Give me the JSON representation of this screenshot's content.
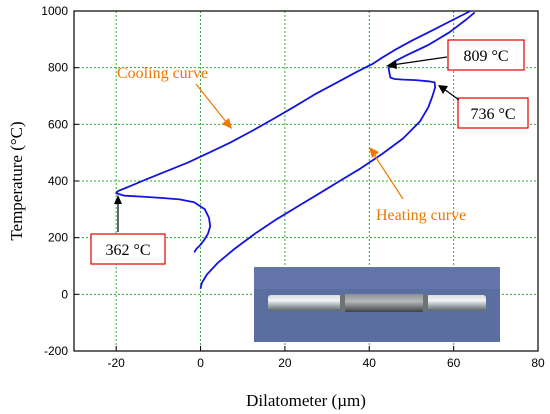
{
  "chart_data": {
    "type": "line",
    "xlabel": "Dilatometer (µm)",
    "ylabel": "Temperature (°C)",
    "xlim": [
      -30,
      80
    ],
    "ylim": [
      -200,
      1000
    ],
    "x_ticks": [
      -20,
      0,
      20,
      40,
      60,
      80
    ],
    "y_ticks": [
      -200,
      0,
      200,
      400,
      600,
      800,
      1000
    ],
    "grid": true,
    "curve_color": "#1414e0",
    "series": [
      {
        "points": [
          [
            0,
            20
          ],
          [
            0.3,
            40
          ],
          [
            1.5,
            70
          ],
          [
            4,
            110
          ],
          [
            8,
            160
          ],
          [
            13,
            215
          ],
          [
            18,
            265
          ],
          [
            23,
            310
          ],
          [
            28,
            355
          ],
          [
            33,
            400
          ],
          [
            38,
            445
          ],
          [
            43,
            495
          ],
          [
            48,
            550
          ],
          [
            52,
            610
          ],
          [
            54,
            660
          ],
          [
            55,
            700
          ],
          [
            55.6,
            730
          ],
          [
            55.5,
            748
          ],
          [
            54,
            752
          ],
          [
            51,
            756
          ],
          [
            48,
            758
          ],
          [
            46,
            760
          ],
          [
            45,
            765
          ],
          [
            44.8,
            780
          ],
          [
            44.6,
            795
          ],
          [
            44.8,
            808
          ],
          [
            46,
            822
          ],
          [
            49,
            845
          ],
          [
            54,
            880
          ],
          [
            59,
            925
          ],
          [
            63,
            970
          ],
          [
            65,
            995
          ]
        ]
      },
      {
        "points": [
          [
            64,
            1000
          ],
          [
            60,
            970
          ],
          [
            55,
            932
          ],
          [
            50,
            895
          ],
          [
            46,
            862
          ],
          [
            43,
            835
          ],
          [
            41,
            815
          ],
          [
            37,
            785
          ],
          [
            32,
            745
          ],
          [
            27,
            705
          ],
          [
            22,
            660
          ],
          [
            17,
            617
          ],
          [
            12,
            575
          ],
          [
            7,
            535
          ],
          [
            2,
            500
          ],
          [
            -3,
            465
          ],
          [
            -8,
            435
          ],
          [
            -13,
            405
          ],
          [
            -17,
            380
          ],
          [
            -19.5,
            365
          ],
          [
            -20,
            357
          ],
          [
            -18,
            348
          ],
          [
            -14,
            345
          ],
          [
            -9,
            340
          ],
          [
            -5,
            335
          ],
          [
            -1.5,
            325
          ],
          [
            1,
            300
          ],
          [
            2,
            270
          ],
          [
            2.3,
            240
          ],
          [
            1.8,
            215
          ],
          [
            1,
            195
          ],
          [
            0,
            175
          ],
          [
            -1,
            160
          ],
          [
            -1.5,
            148
          ]
        ]
      }
    ],
    "annotations": [
      {
        "text": "Cooling curve",
        "color": "#ee7700"
      },
      {
        "text": "Heating curve",
        "color": "#ee7700"
      },
      {
        "text": "809 °C",
        "color": "#e00000"
      },
      {
        "text": "736 °C",
        "color": "#e00000"
      },
      {
        "text": "362 °C",
        "color": "#e00000"
      }
    ]
  },
  "inset": {
    "description": "photo of dilatometer specimen rod",
    "background": "#5b6ea0"
  }
}
